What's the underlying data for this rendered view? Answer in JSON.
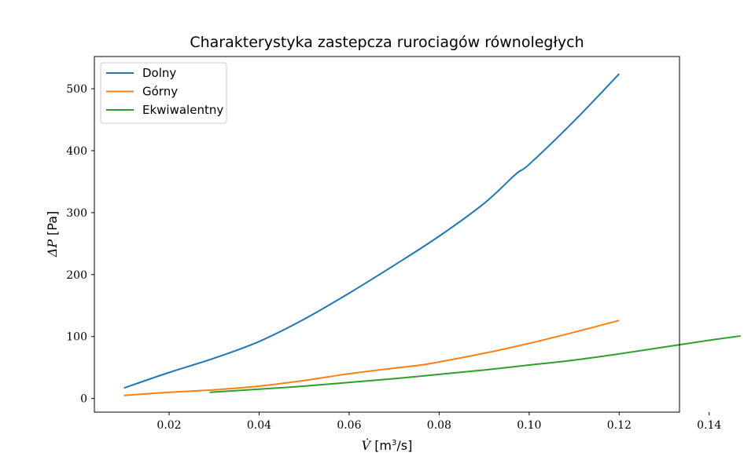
{
  "chart_data": {
    "type": "line",
    "title": "Charakterystyka zastepcza rurociagów równoległych",
    "xlabel_var": "V̇",
    "xlabel_unit_prefix": "[m",
    "xlabel_unit_sup": "3",
    "xlabel_unit_suffix": "/s]",
    "ylabel_var": "ΔP",
    "ylabel_unit": "[Pa]",
    "xlim": [
      0.0034,
      0.1334
    ],
    "ylim": [
      -22,
      552
    ],
    "xticks": [
      {
        "value": 0.02,
        "label": "0.02"
      },
      {
        "value": 0.04,
        "label": "0.04"
      },
      {
        "value": 0.06,
        "label": "0.06"
      },
      {
        "value": 0.08,
        "label": "0.08"
      },
      {
        "value": 0.1,
        "label": "0.10"
      },
      {
        "value": 0.12,
        "label": "0.12"
      },
      {
        "value": 0.14,
        "label": "0.14"
      }
    ],
    "yticks": [
      {
        "value": 0,
        "label": "0"
      },
      {
        "value": 100,
        "label": "100"
      },
      {
        "value": 200,
        "label": "200"
      },
      {
        "value": 300,
        "label": "300"
      },
      {
        "value": 400,
        "label": "400"
      },
      {
        "value": 500,
        "label": "500"
      }
    ],
    "grid": false,
    "legend_position": "top-left",
    "series": [
      {
        "name": "Dolny",
        "color": "#1f77b4",
        "x": [
          0.01,
          0.02,
          0.03,
          0.04,
          0.05,
          0.06,
          0.07,
          0.08,
          0.09,
          0.097,
          0.1,
          0.11,
          0.12
        ],
        "y": [
          17,
          42,
          65,
          92,
          128,
          170,
          215,
          262,
          315,
          362,
          378,
          448,
          524
        ]
      },
      {
        "name": "Górny",
        "color": "#ff7f0e",
        "x": [
          0.01,
          0.02,
          0.03,
          0.04,
          0.05,
          0.06,
          0.07,
          0.076,
          0.08,
          0.09,
          0.1,
          0.11,
          0.12
        ],
        "y": [
          5,
          10,
          14,
          20,
          29,
          40,
          49,
          54,
          59,
          73,
          89,
          107,
          126
        ]
      },
      {
        "name": "Ekwiwalentny",
        "color": "#2ca02c",
        "x": [
          0.029,
          0.04,
          0.05,
          0.06,
          0.07,
          0.08,
          0.09,
          0.1,
          0.11,
          0.12,
          0.13,
          0.14,
          0.147
        ],
        "y": [
          10,
          15,
          20,
          26,
          32,
          39,
          46,
          54,
          62,
          72,
          83,
          94,
          101
        ]
      }
    ]
  }
}
